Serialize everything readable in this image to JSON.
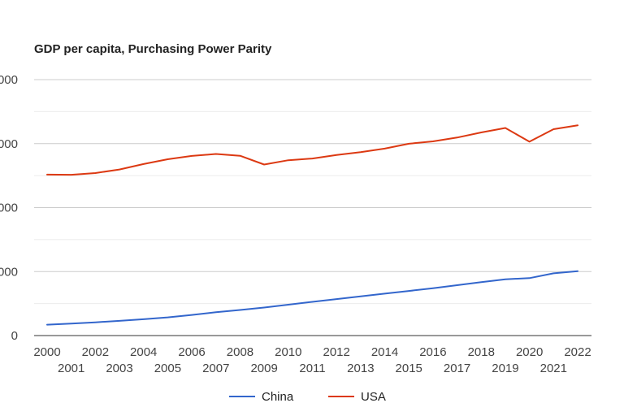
{
  "chart_data": {
    "type": "line",
    "title": "GDP per capita, Purchasing Power Parity",
    "xlabel": "",
    "ylabel": "",
    "x": [
      2000,
      2001,
      2002,
      2003,
      2004,
      2005,
      2006,
      2007,
      2008,
      2009,
      2010,
      2011,
      2012,
      2013,
      2014,
      2015,
      2016,
      2017,
      2018,
      2019,
      2020,
      2021,
      2022
    ],
    "x_tick_labels": [
      "2000",
      "2001",
      "2002",
      "2003",
      "2004",
      "2005",
      "2006",
      "2007",
      "2008",
      "2009",
      "2010",
      "2011",
      "2012",
      "2013",
      "2014",
      "2015",
      "2016",
      "2017",
      "2018",
      "2019",
      "2020",
      "2021",
      "2022"
    ],
    "y_tick_labels": [
      "000",
      "000",
      "000",
      "000",
      "0"
    ],
    "ylim": [
      0,
      80000
    ],
    "grid": true,
    "legend_position": "bottom",
    "series": [
      {
        "name": "China",
        "color": "#3366cc",
        "values": [
          3400,
          3750,
          4150,
          4600,
          5100,
          5700,
          6450,
          7300,
          8000,
          8750,
          9650,
          10550,
          11400,
          12250,
          13100,
          13950,
          14800,
          15750,
          16700,
          17600,
          17950,
          19450,
          20150
        ]
      },
      {
        "name": "USA",
        "color": "#dc3912",
        "values": [
          50300,
          50250,
          50800,
          51900,
          53600,
          55100,
          56150,
          56750,
          56200,
          53450,
          54800,
          55350,
          56450,
          57350,
          58450,
          59950,
          60700,
          61900,
          63500,
          64900,
          60600,
          64500,
          65700
        ]
      }
    ]
  }
}
